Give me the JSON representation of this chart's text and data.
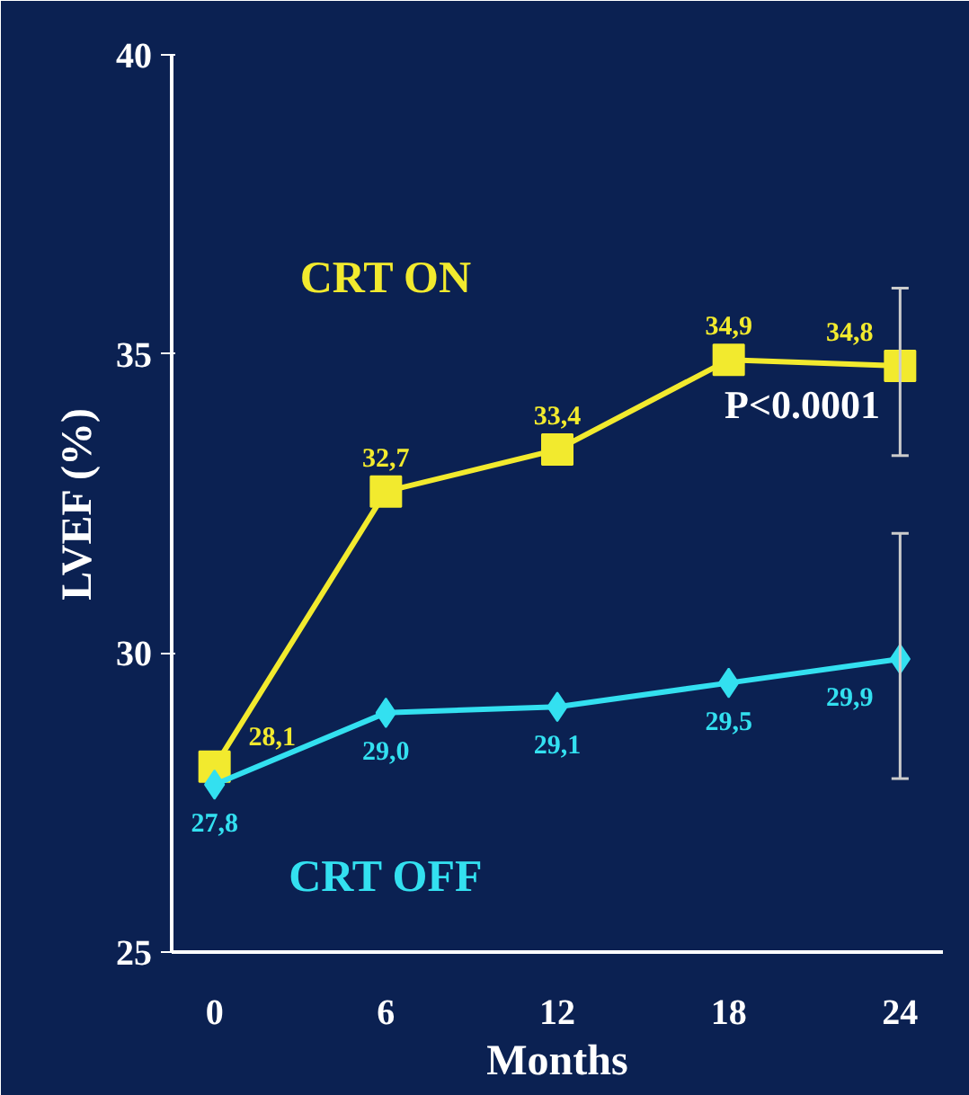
{
  "chart_data": {
    "type": "line",
    "xlabel": "Months",
    "ylabel": "LVEF (%)",
    "x": [
      0,
      6,
      12,
      18,
      24
    ],
    "xlim": [
      -1.5,
      25.5
    ],
    "ylim": [
      25,
      40
    ],
    "xticks": [
      0,
      6,
      12,
      18,
      24
    ],
    "yticks": [
      25,
      30,
      35,
      40
    ],
    "grid": false,
    "line_style": "solid",
    "series": [
      {
        "name": "CRT ON",
        "color": "#f2ea2e",
        "marker": "square",
        "values": [
          28.1,
          32.7,
          33.4,
          34.9,
          34.8
        ],
        "value_labels": [
          "28,1",
          "32,7",
          "33,4",
          "34,9",
          "34,8"
        ],
        "errors": [
          null,
          null,
          null,
          null,
          [
            33.3,
            36.1
          ]
        ]
      },
      {
        "name": "CRT OFF",
        "color": "#33e0f0",
        "marker": "diamond",
        "values": [
          27.8,
          29.0,
          29.1,
          29.5,
          29.9
        ],
        "value_labels": [
          "27,8",
          "29,0",
          "29,1",
          "29,5",
          "29,9"
        ],
        "errors": [
          null,
          null,
          null,
          null,
          [
            27.9,
            32.0
          ]
        ]
      }
    ],
    "annotations": [
      "P<0.0001"
    ]
  }
}
